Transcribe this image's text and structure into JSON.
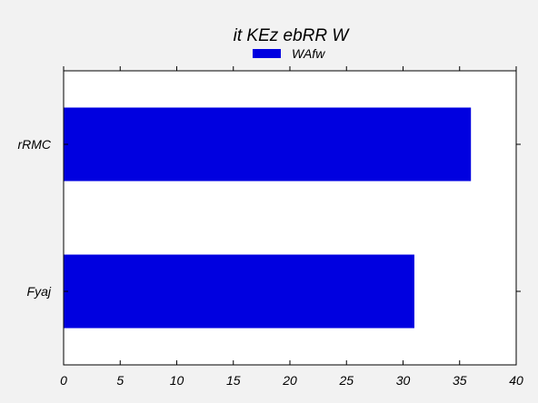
{
  "chart_data": {
    "type": "bar",
    "orientation": "horizontal",
    "title": "it KEz ebRR W",
    "xlabel": "",
    "ylabel": "",
    "categories": [
      "Fyaj",
      "rRMC"
    ],
    "series": [
      {
        "name": "WAfw",
        "values": [
          31,
          36
        ],
        "color": "#0000e0"
      }
    ],
    "xlim": [
      0,
      40
    ],
    "xticks": [
      "0",
      "5",
      "10",
      "15",
      "20",
      "25",
      "30",
      "35",
      "40"
    ],
    "grid": false,
    "legend_position": "top-center"
  }
}
